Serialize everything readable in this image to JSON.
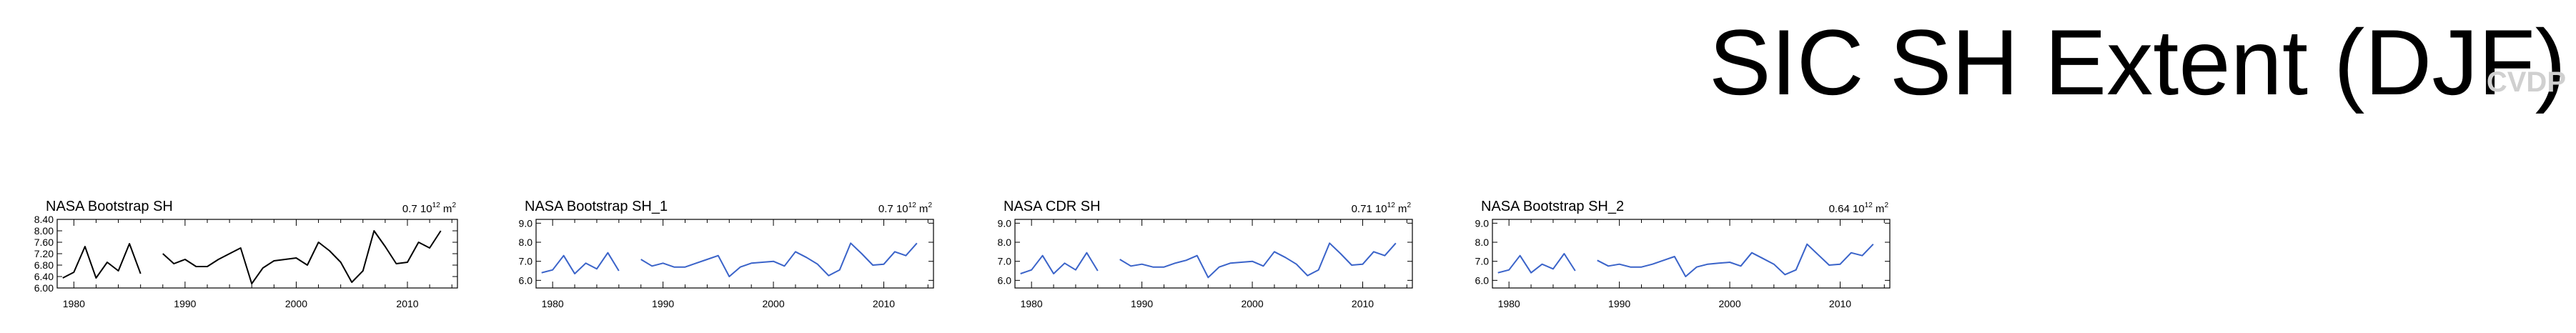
{
  "title": "SIC SH Extent (DJF)",
  "watermark": "CVDP",
  "unit": "10",
  "unit_exp": "12",
  "unit_tail": "m",
  "unit_tail_exp": "2",
  "colors": {
    "black": "#000000",
    "blue": "#3a63c9"
  },
  "chart_data": [
    {
      "type": "line",
      "title": "NASA Bootstrap SH",
      "std_label": "0.7",
      "color": "#000000",
      "xlim": [
        1978.5,
        2014.5
      ],
      "ylim": [
        6.0,
        8.4
      ],
      "yticks": [
        6.0,
        6.4,
        6.8,
        7.2,
        7.6,
        8.0,
        8.4
      ],
      "ytick_labels": [
        "6.00",
        "6.40",
        "6.80",
        "7.20",
        "7.60",
        "8.00",
        "8.40"
      ],
      "xticks": [
        1980,
        1990,
        2000,
        2010
      ],
      "xtick_labels": [
        "1980",
        "1990",
        "2000",
        "2010"
      ],
      "x": [
        1979,
        1980,
        1981,
        1982,
        1983,
        1984,
        1985,
        1986,
        1987,
        1988,
        1989,
        1990,
        1991,
        1992,
        1993,
        1994,
        1995,
        1996,
        1997,
        1998,
        1999,
        2000,
        2001,
        2002,
        2003,
        2004,
        2005,
        2006,
        2007,
        2008,
        2009,
        2010,
        2011,
        2012,
        2013,
        2014
      ],
      "y": [
        6.35,
        6.55,
        7.45,
        6.35,
        6.9,
        6.6,
        7.55,
        6.5,
        null,
        7.2,
        6.85,
        7.0,
        6.75,
        6.75,
        7.0,
        7.2,
        7.4,
        6.15,
        6.7,
        6.95,
        7.0,
        7.05,
        6.8,
        7.6,
        7.3,
        6.9,
        6.2,
        6.6,
        8.0,
        7.45,
        6.85,
        6.9,
        7.6,
        7.4,
        8.0,
        null
      ]
    },
    {
      "type": "line",
      "title": "NASA Bootstrap SH_1",
      "std_label": "0.7",
      "color": "#3a63c9",
      "xlim": [
        1978.5,
        2014.5
      ],
      "ylim": [
        5.6,
        9.2
      ],
      "yticks": [
        6.0,
        7.0,
        8.0,
        9.0
      ],
      "ytick_labels": [
        "6.0",
        "7.0",
        "8.0",
        "9.0"
      ],
      "xticks": [
        1980,
        1990,
        2000,
        2010
      ],
      "xtick_labels": [
        "1980",
        "1990",
        "2000",
        "2010"
      ],
      "x": [
        1979,
        1980,
        1981,
        1982,
        1983,
        1984,
        1985,
        1986,
        1987,
        1988,
        1989,
        1990,
        1991,
        1992,
        1993,
        1994,
        1995,
        1996,
        1997,
        1998,
        1999,
        2000,
        2001,
        2002,
        2003,
        2004,
        2005,
        2006,
        2007,
        2008,
        2009,
        2010,
        2011,
        2012,
        2013,
        2014
      ],
      "y": [
        6.4,
        6.55,
        7.3,
        6.35,
        6.9,
        6.6,
        7.45,
        6.5,
        null,
        7.1,
        6.75,
        6.9,
        6.7,
        6.7,
        6.9,
        7.1,
        7.3,
        6.2,
        6.7,
        6.9,
        6.95,
        7.0,
        6.75,
        7.5,
        7.2,
        6.85,
        6.25,
        6.55,
        7.95,
        7.4,
        6.8,
        6.85,
        7.5,
        7.3,
        7.95,
        null
      ]
    },
    {
      "type": "line",
      "title": "NASA CDR SH",
      "std_label": "0.71",
      "color": "#3a63c9",
      "xlim": [
        1978.5,
        2014.5
      ],
      "ylim": [
        5.6,
        9.2
      ],
      "yticks": [
        6.0,
        7.0,
        8.0,
        9.0
      ],
      "ytick_labels": [
        "6.0",
        "7.0",
        "8.0",
        "9.0"
      ],
      "xticks": [
        1980,
        1990,
        2000,
        2010
      ],
      "xtick_labels": [
        "1980",
        "1990",
        "2000",
        "2010"
      ],
      "x": [
        1979,
        1980,
        1981,
        1982,
        1983,
        1984,
        1985,
        1986,
        1987,
        1988,
        1989,
        1990,
        1991,
        1992,
        1993,
        1994,
        1995,
        1996,
        1997,
        1998,
        1999,
        2000,
        2001,
        2002,
        2003,
        2004,
        2005,
        2006,
        2007,
        2008,
        2009,
        2010,
        2011,
        2012,
        2013,
        2014
      ],
      "y": [
        6.35,
        6.55,
        7.3,
        6.35,
        6.9,
        6.55,
        7.45,
        6.5,
        null,
        7.1,
        6.75,
        6.85,
        6.7,
        6.7,
        6.9,
        7.05,
        7.3,
        6.15,
        6.7,
        6.9,
        6.95,
        7.0,
        6.75,
        7.5,
        7.2,
        6.85,
        6.25,
        6.55,
        7.95,
        7.4,
        6.8,
        6.85,
        7.5,
        7.3,
        7.95,
        null
      ]
    },
    {
      "type": "line",
      "title": "NASA Bootstrap SH_2",
      "std_label": "0.64",
      "color": "#3a63c9",
      "xlim": [
        1978.5,
        2014.5
      ],
      "ylim": [
        5.6,
        9.2
      ],
      "yticks": [
        6.0,
        7.0,
        8.0,
        9.0
      ],
      "ytick_labels": [
        "6.0",
        "7.0",
        "8.0",
        "9.0"
      ],
      "xticks": [
        1980,
        1990,
        2000,
        2010
      ],
      "xtick_labels": [
        "1980",
        "1990",
        "2000",
        "2010"
      ],
      "x": [
        1979,
        1980,
        1981,
        1982,
        1983,
        1984,
        1985,
        1986,
        1987,
        1988,
        1989,
        1990,
        1991,
        1992,
        1993,
        1994,
        1995,
        1996,
        1997,
        1998,
        1999,
        2000,
        2001,
        2002,
        2003,
        2004,
        2005,
        2006,
        2007,
        2008,
        2009,
        2010,
        2011,
        2012,
        2013,
        2014
      ],
      "y": [
        6.4,
        6.55,
        7.3,
        6.4,
        6.85,
        6.6,
        7.4,
        6.5,
        null,
        7.05,
        6.75,
        6.85,
        6.7,
        6.7,
        6.85,
        7.05,
        7.25,
        6.2,
        6.7,
        6.85,
        6.9,
        6.95,
        6.75,
        7.45,
        7.15,
        6.85,
        6.3,
        6.55,
        7.9,
        7.35,
        6.8,
        6.85,
        7.45,
        7.3,
        7.9,
        null
      ]
    }
  ]
}
